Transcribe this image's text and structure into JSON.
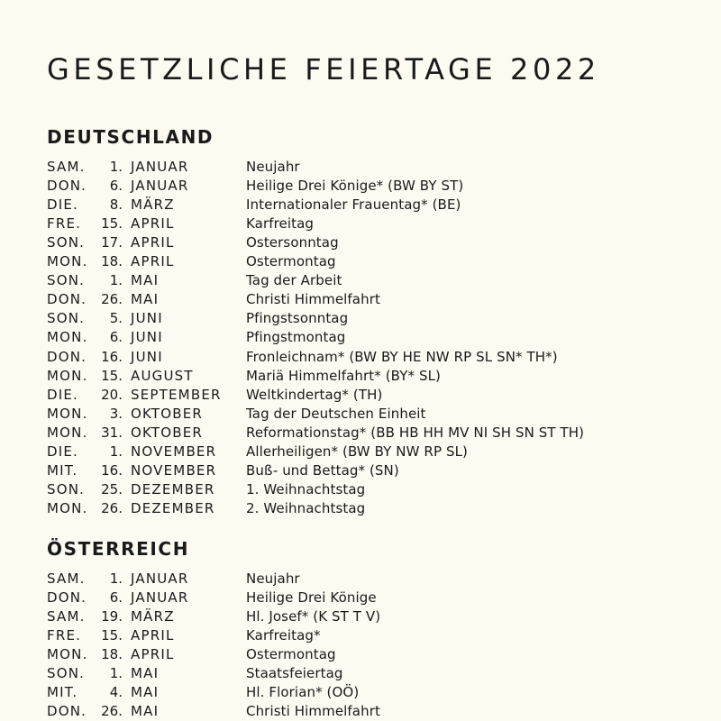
{
  "title": "GESETZLICHE FEIERTAGE 2022",
  "sections": [
    {
      "heading": "DEUTSCHLAND",
      "rows": [
        {
          "day": "SAM.",
          "num": "1.",
          "month": "JANUAR",
          "name": "Neujahr"
        },
        {
          "day": "DON.",
          "num": "6.",
          "month": "JANUAR",
          "name": "Heilige Drei Könige* (BW BY ST)"
        },
        {
          "day": "DIE.",
          "num": "8.",
          "month": "MÄRZ",
          "name": "Internationaler Frauentag* (BE)"
        },
        {
          "day": "FRE.",
          "num": "15.",
          "month": "APRIL",
          "name": "Karfreitag"
        },
        {
          "day": "SON.",
          "num": "17.",
          "month": "APRIL",
          "name": "Ostersonntag"
        },
        {
          "day": "MON.",
          "num": "18.",
          "month": "APRIL",
          "name": "Ostermontag"
        },
        {
          "day": "SON.",
          "num": "1.",
          "month": "MAI",
          "name": "Tag der Arbeit"
        },
        {
          "day": "DON.",
          "num": "26.",
          "month": "MAI",
          "name": "Christi Himmelfahrt"
        },
        {
          "day": "SON.",
          "num": "5.",
          "month": "JUNI",
          "name": "Pfingstsonntag"
        },
        {
          "day": "MON.",
          "num": "6.",
          "month": "JUNI",
          "name": "Pfingstmontag"
        },
        {
          "day": "DON.",
          "num": "16.",
          "month": "JUNI",
          "name": "Fronleichnam* (BW BY HE NW RP SL SN* TH*)"
        },
        {
          "day": "MON.",
          "num": "15.",
          "month": "AUGUST",
          "name": "Mariä Himmelfahrt* (BY* SL)"
        },
        {
          "day": "DIE.",
          "num": "20.",
          "month": "SEPTEMBER",
          "name": "Weltkindertag* (TH)"
        },
        {
          "day": "MON.",
          "num": "3.",
          "month": "OKTOBER",
          "name": "Tag der Deutschen Einheit"
        },
        {
          "day": "MON.",
          "num": "31.",
          "month": "OKTOBER",
          "name": "Reformationstag* (BB HB HH MV NI SH SN ST TH)"
        },
        {
          "day": "DIE.",
          "num": "1.",
          "month": "NOVEMBER",
          "name": "Allerheiligen* (BW BY NW RP SL)"
        },
        {
          "day": "MIT.",
          "num": "16.",
          "month": "NOVEMBER",
          "name": "Buß- und Bettag* (SN)"
        },
        {
          "day": "SON.",
          "num": "25.",
          "month": "DEZEMBER",
          "name": "1. Weihnachtstag"
        },
        {
          "day": "MON.",
          "num": "26.",
          "month": "DEZEMBER",
          "name": "2. Weihnachtstag"
        }
      ]
    },
    {
      "heading": "ÖSTERREICH",
      "rows": [
        {
          "day": "SAM.",
          "num": "1.",
          "month": "JANUAR",
          "name": "Neujahr"
        },
        {
          "day": "DON.",
          "num": "6.",
          "month": "JANUAR",
          "name": "Heilige Drei Könige"
        },
        {
          "day": "SAM.",
          "num": "19.",
          "month": "MÄRZ",
          "name": "Hl. Josef* (K ST T V)"
        },
        {
          "day": "FRE.",
          "num": "15.",
          "month": "APRIL",
          "name": "Karfreitag*"
        },
        {
          "day": "MON.",
          "num": "18.",
          "month": "APRIL",
          "name": "Ostermontag"
        },
        {
          "day": "SON.",
          "num": "1.",
          "month": "MAI",
          "name": "Staatsfeiertag"
        },
        {
          "day": "MIT.",
          "num": "4.",
          "month": "MAI",
          "name": "Hl. Florian* (OÖ)"
        },
        {
          "day": "DON.",
          "num": "26.",
          "month": "MAI",
          "name": "Christi Himmelfahrt"
        }
      ]
    }
  ]
}
